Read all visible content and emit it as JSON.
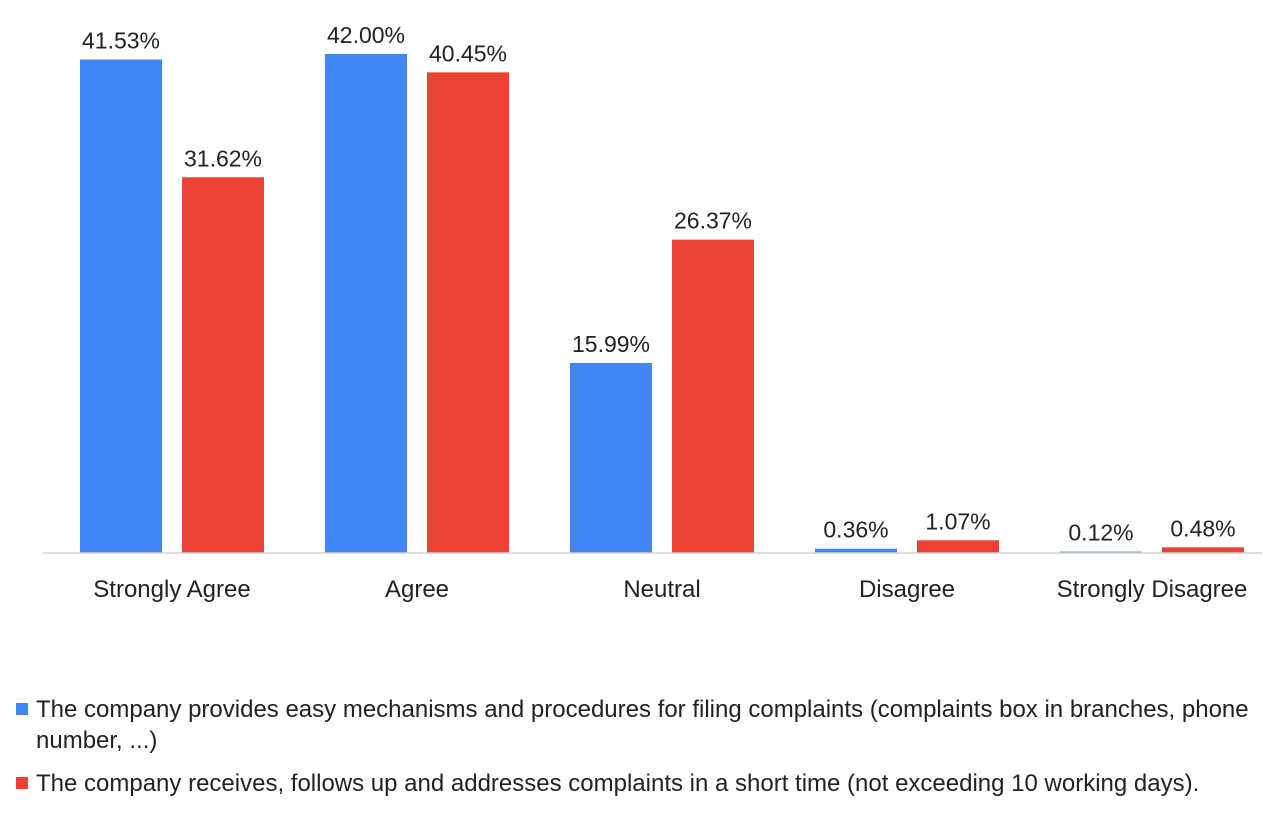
{
  "chart_data": {
    "type": "bar",
    "categories": [
      "Strongly Agree",
      "Agree",
      "Neutral",
      "Disagree",
      "Strongly Disagree"
    ],
    "series": [
      {
        "name": "The company provides easy mechanisms and procedures for filing complaints (complaints box in branches, phone number, ...)",
        "values": [
          41.53,
          42.0,
          15.99,
          0.36,
          0.12
        ],
        "labels": [
          "41.53%",
          "42.00%",
          "15.99%",
          "0.36%",
          "0.12%"
        ],
        "color": "#4285f4"
      },
      {
        "name": "The company receives, follows up and addresses complaints in a short time (not exceeding 10 working days).",
        "values": [
          31.62,
          40.45,
          26.37,
          1.07,
          0.48
        ],
        "labels": [
          "31.62%",
          "40.45%",
          "26.37%",
          "1.07%",
          "0.48%"
        ],
        "color": "#ea4335"
      }
    ],
    "title": "",
    "xlabel": "",
    "ylabel": "",
    "ylim": [
      0,
      42.5
    ],
    "grid": false,
    "legend_position": "bottom"
  }
}
